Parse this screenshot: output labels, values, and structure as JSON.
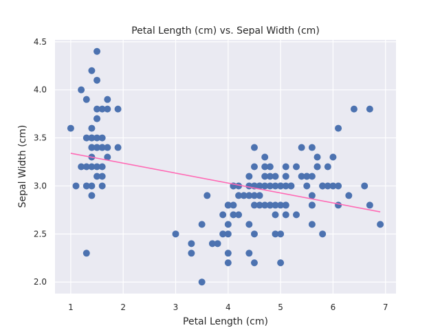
{
  "chart_data": {
    "type": "scatter",
    "title": "Petal Length (cm) vs. Sepal Width (cm)",
    "xlabel": "Petal Length (cm)",
    "ylabel": "Sepal Width (cm)",
    "xlim": [
      0.7,
      7.2
    ],
    "ylim": [
      1.88,
      4.52
    ],
    "xticks": [
      1,
      2,
      3,
      4,
      5,
      6,
      7
    ],
    "xtick_labels": [
      "1",
      "2",
      "3",
      "4",
      "5",
      "6",
      "7"
    ],
    "yticks": [
      2.0,
      2.5,
      3.0,
      3.5,
      4.0,
      4.5
    ],
    "ytick_labels": [
      "2.0",
      "2.5",
      "3.0",
      "3.5",
      "4.0",
      "4.5"
    ],
    "grid": true,
    "background_color": "#eaeaf2",
    "point_color": "#4c72b0",
    "line_color": "#ff69b4",
    "series": [
      {
        "type": "scatter",
        "x": [
          1.0,
          1.1,
          1.2,
          1.2,
          1.3,
          1.3,
          1.3,
          1.3,
          1.3,
          1.4,
          1.4,
          1.4,
          1.4,
          1.4,
          1.4,
          1.4,
          1.4,
          1.4,
          1.4,
          1.5,
          1.5,
          1.5,
          1.5,
          1.5,
          1.5,
          1.5,
          1.5,
          1.5,
          1.5,
          1.6,
          1.6,
          1.6,
          1.6,
          1.6,
          1.6,
          1.6,
          1.7,
          1.7,
          1.7,
          1.7,
          1.9,
          1.9,
          3.0,
          3.3,
          3.3,
          3.5,
          3.5,
          3.6,
          3.7,
          3.8,
          3.9,
          3.9,
          4.0,
          4.0,
          4.0,
          4.0,
          4.0,
          4.0,
          4.1,
          4.1,
          4.1,
          4.1,
          4.2,
          4.2,
          4.2,
          4.3,
          4.4,
          4.4,
          4.4,
          4.4,
          4.4,
          4.5,
          4.5,
          4.5,
          4.5,
          4.5,
          4.5,
          4.5,
          4.5,
          4.6,
          4.6,
          4.6,
          4.6,
          4.7,
          4.7,
          4.7,
          4.7,
          4.7,
          4.8,
          4.8,
          4.8,
          4.8,
          4.8,
          4.9,
          4.9,
          4.9,
          4.9,
          4.9,
          5.0,
          5.0,
          5.0,
          5.0,
          5.0,
          5.1,
          5.1,
          5.1,
          5.1,
          5.1,
          5.1,
          5.2,
          5.2,
          5.3,
          5.3,
          5.4,
          5.4,
          5.5,
          5.5,
          5.5,
          5.6,
          5.6,
          5.6,
          5.6,
          5.6,
          5.6,
          5.7,
          5.7,
          5.7,
          5.8,
          5.8,
          5.8,
          5.9,
          5.9,
          6.0,
          6.0,
          6.1,
          6.1,
          6.1,
          6.3,
          6.4,
          6.6,
          6.7,
          6.7,
          6.9
        ],
        "y": [
          3.6,
          3.0,
          4.0,
          3.2,
          3.9,
          3.5,
          3.2,
          3.0,
          2.3,
          4.2,
          3.6,
          3.5,
          3.4,
          3.3,
          3.2,
          3.0,
          2.9,
          3.4,
          3.5,
          4.4,
          4.1,
          3.8,
          3.7,
          3.5,
          3.4,
          3.1,
          3.2,
          3.4,
          3.7,
          3.8,
          3.5,
          3.4,
          3.2,
          3.1,
          3.0,
          3.4,
          3.9,
          3.8,
          3.4,
          3.3,
          3.8,
          3.4,
          2.5,
          2.4,
          2.3,
          2.6,
          2.0,
          2.9,
          2.4,
          2.4,
          2.7,
          2.5,
          2.8,
          2.5,
          2.3,
          2.2,
          2.6,
          2.8,
          3.0,
          2.8,
          2.7,
          3.0,
          3.0,
          2.9,
          2.7,
          2.9,
          3.1,
          3.0,
          2.9,
          2.6,
          2.3,
          3.4,
          3.2,
          3.0,
          2.9,
          2.8,
          2.5,
          2.2,
          3.0,
          3.0,
          2.9,
          2.8,
          3.0,
          3.3,
          3.2,
          3.1,
          2.8,
          3.0,
          3.2,
          3.1,
          3.0,
          2.8,
          2.8,
          3.1,
          3.0,
          2.8,
          2.7,
          2.5,
          3.0,
          2.8,
          2.5,
          2.2,
          3.0,
          3.2,
          3.1,
          3.0,
          2.8,
          2.7,
          2.8,
          3.0,
          3.0,
          3.2,
          2.7,
          3.4,
          3.1,
          3.1,
          3.0,
          3.1,
          3.4,
          3.1,
          2.9,
          2.8,
          2.6,
          2.8,
          3.3,
          3.2,
          3.2,
          3.0,
          2.5,
          3.0,
          3.2,
          3.0,
          3.3,
          3.0,
          3.6,
          3.0,
          2.8,
          2.9,
          3.8,
          3.0,
          3.8,
          2.8,
          2.6
        ]
      },
      {
        "type": "line",
        "x": [
          1.0,
          6.9
        ],
        "y": [
          3.34,
          2.73
        ]
      }
    ]
  }
}
